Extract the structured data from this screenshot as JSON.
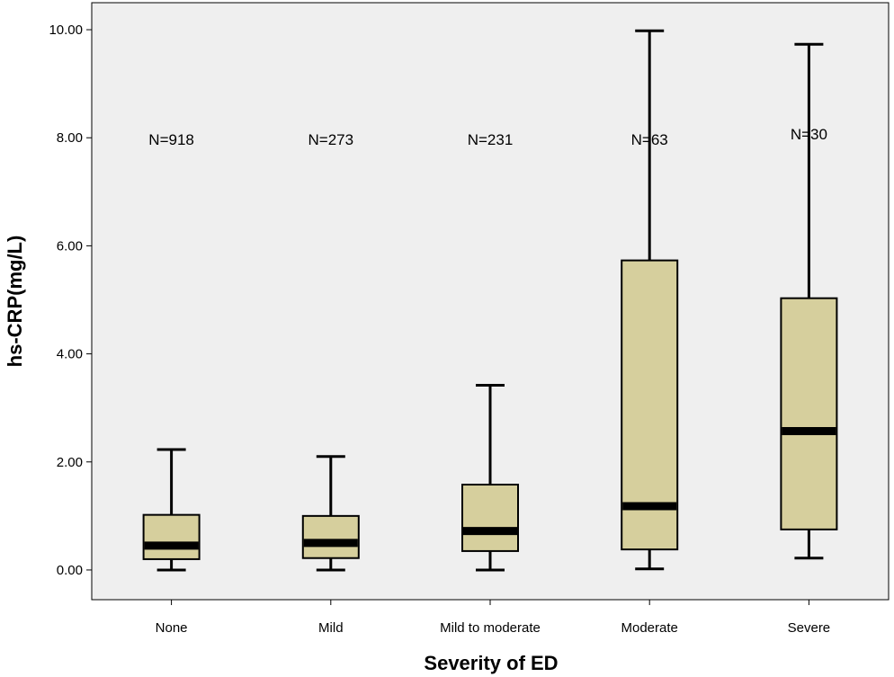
{
  "chart_data": {
    "type": "boxplot",
    "title": "",
    "xlabel": "Severity of ED",
    "ylabel": "hs-CRP(mg/L)",
    "ylim": [
      -0.55,
      10.5
    ],
    "yticks": [
      0,
      2,
      4,
      6,
      8,
      10
    ],
    "ytick_labels": [
      "0.00",
      "2.00",
      "4.00",
      "6.00",
      "8.00",
      "10.00"
    ],
    "categories": [
      "None",
      "Mild",
      "Mild to moderate",
      "Moderate",
      "Severe"
    ],
    "series": [
      {
        "name": "None",
        "n_label": "N=918",
        "min": 0.0,
        "q1": 0.2,
        "median": 0.45,
        "q3": 1.02,
        "max": 2.23
      },
      {
        "name": "Mild",
        "n_label": "N=273",
        "min": 0.0,
        "q1": 0.22,
        "median": 0.5,
        "q3": 1.0,
        "max": 2.1
      },
      {
        "name": "Mild to moderate",
        "n_label": "N=231",
        "min": 0.0,
        "q1": 0.35,
        "median": 0.72,
        "q3": 1.58,
        "max": 3.42
      },
      {
        "name": "Moderate",
        "n_label": "N=63",
        "min": 0.02,
        "q1": 0.38,
        "median": 1.18,
        "q3": 5.73,
        "max": 9.98
      },
      {
        "name": "Severe",
        "n_label": "N=30",
        "min": 0.22,
        "q1": 0.75,
        "median": 2.57,
        "q3": 5.03,
        "max": 9.73
      }
    ],
    "colors": {
      "plot_background": "#efefef",
      "box_fill": "#d6cf9d",
      "stroke": "#000000",
      "page_background": "#ffffff"
    }
  }
}
